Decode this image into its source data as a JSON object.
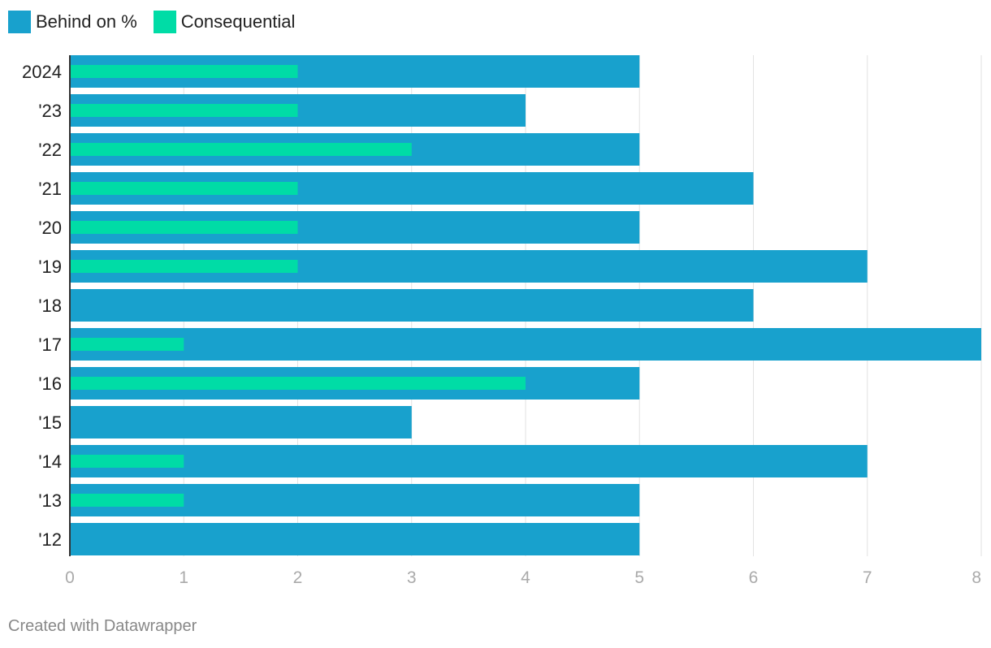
{
  "chart_data": {
    "type": "bar",
    "orientation": "horizontal",
    "categories": [
      "2024",
      "'23",
      "'22",
      "'21",
      "'20",
      "'19",
      "'18",
      "'17",
      "'16",
      "'15",
      "'14",
      "'13",
      "'12"
    ],
    "series": [
      {
        "name": "Behind on %",
        "color": "#18a1cd",
        "values": [
          5,
          4,
          5,
          6,
          5,
          7,
          6,
          8,
          5,
          3,
          7,
          5,
          5
        ]
      },
      {
        "name": "Consequential",
        "color": "#00dca6",
        "values": [
          2,
          2,
          3,
          2,
          2,
          2,
          0,
          1,
          4,
          0,
          1,
          1,
          0
        ]
      }
    ],
    "xlim": [
      0,
      8
    ],
    "xticks": [
      "0",
      "1",
      "2",
      "3",
      "4",
      "5",
      "6",
      "7",
      "8"
    ],
    "grid": true,
    "legend_position": "top-left",
    "title": "",
    "xlabel": "",
    "ylabel": ""
  },
  "footer": {
    "credit": "Created with Datawrapper"
  }
}
